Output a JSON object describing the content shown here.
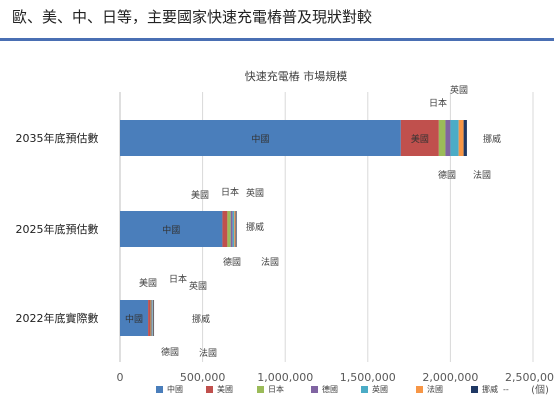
{
  "page": {
    "heading": "歐、美、中、日等，主要國家快速充電樁普及現狀對較"
  },
  "chart_data": {
    "type": "bar",
    "stacked": true,
    "orientation": "horizontal",
    "title": "快速充電樁 市場規模",
    "xlabel": "",
    "ylabel": "",
    "unit_label": "(個)",
    "xlim": [
      0,
      2500000
    ],
    "x_ticks": [
      0,
      500000,
      1000000,
      1500000,
      2000000,
      2500000
    ],
    "x_tick_labels": [
      "0",
      "500,000",
      "1,000,000",
      "1,500,000",
      "2,000,000",
      "2,500,000"
    ],
    "grid": "vertical",
    "legend_position": "bottom",
    "categories": [
      "2035年底預估數",
      "2025年底預估數",
      "2022年底實際數"
    ],
    "series": [
      {
        "name": "中國",
        "color": "#4a7ebb",
        "values": [
          1700000,
          620000,
          170000
        ]
      },
      {
        "name": "美國",
        "color": "#c0504d",
        "values": [
          230000,
          30000,
          15000
        ]
      },
      {
        "name": "日本",
        "color": "#9bbb59",
        "values": [
          40000,
          20000,
          5000
        ]
      },
      {
        "name": "德國",
        "color": "#8064a2",
        "values": [
          30000,
          12000,
          5000
        ]
      },
      {
        "name": "英國",
        "color": "#4bacc6",
        "values": [
          50000,
          10000,
          4000
        ]
      },
      {
        "name": "法國",
        "color": "#f79646",
        "values": [
          30000,
          8000,
          3000
        ]
      },
      {
        "name": "挪威",
        "color": "#1f3864",
        "values": [
          20000,
          6000,
          4000
        ]
      }
    ],
    "legend_extra": "--",
    "bar_labels": [
      "中國",
      "中國",
      "中國"
    ],
    "annotations": [
      [
        "英國",
        "日本",
        "美國",
        "德國",
        "法國",
        "挪威"
      ],
      [
        "美國",
        "日本",
        "英國",
        "挪威",
        "德國",
        "法國"
      ],
      [
        "美國",
        "日本",
        "英國",
        "挪威",
        "德國",
        "法國"
      ]
    ]
  }
}
